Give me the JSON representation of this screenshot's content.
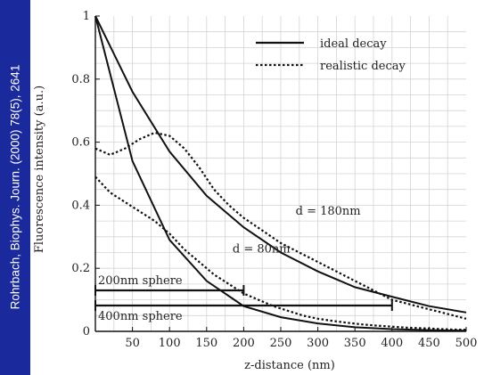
{
  "side_caption": "Rohrbach, Biophys. Journ. (2000) 78(5), 2641",
  "chart_data": {
    "type": "line",
    "xlabel": "z-distance (nm)",
    "ylabel": "Fluorescence intensity (a.u.)",
    "xlim": [
      0,
      500
    ],
    "ylim": [
      0,
      1
    ],
    "x_ticks": [
      "50",
      "100",
      "150",
      "200",
      "250",
      "300",
      "350",
      "400",
      "450",
      "500"
    ],
    "y_ticks": [
      "0",
      "0.2",
      "0.4",
      "0.6",
      "0.8",
      "1"
    ],
    "grid": true,
    "legend_position": "top-right",
    "legend": [
      {
        "label": "ideal decay",
        "style": "solid"
      },
      {
        "label": "realistic decay",
        "style": "dotted"
      }
    ],
    "series": [
      {
        "style": "solid",
        "x": [
          0,
          50,
          100,
          150,
          200,
          250,
          300,
          350,
          400,
          450,
          500
        ],
        "y": [
          1.0,
          0.54,
          0.29,
          0.16,
          0.08,
          0.045,
          0.025,
          0.013,
          0.007,
          0.004,
          0.002
        ]
      },
      {
        "style": "solid",
        "x": [
          0,
          50,
          100,
          150,
          200,
          250,
          300,
          350,
          400,
          450,
          500
        ],
        "y": [
          1.0,
          0.76,
          0.57,
          0.43,
          0.33,
          0.25,
          0.19,
          0.14,
          0.11,
          0.08,
          0.06
        ]
      },
      {
        "style": "dotted",
        "x": [
          0,
          20,
          40,
          60,
          80,
          100,
          120,
          140,
          160,
          180,
          200,
          220,
          240,
          260,
          280,
          300,
          320,
          340,
          360,
          380,
          400,
          420,
          440,
          460,
          480,
          500
        ],
        "y": [
          0.49,
          0.44,
          0.41,
          0.38,
          0.35,
          0.31,
          0.26,
          0.22,
          0.18,
          0.15,
          0.12,
          0.1,
          0.08,
          0.065,
          0.05,
          0.04,
          0.033,
          0.027,
          0.022,
          0.018,
          0.015,
          0.012,
          0.01,
          0.008,
          0.006,
          0.005
        ]
      },
      {
        "style": "dotted",
        "x": [
          0,
          20,
          40,
          60,
          80,
          100,
          120,
          140,
          160,
          180,
          200,
          225,
          250,
          275,
          300,
          325,
          350,
          375,
          400,
          425,
          450,
          475,
          500
        ],
        "y": [
          0.58,
          0.56,
          0.58,
          0.61,
          0.63,
          0.62,
          0.58,
          0.52,
          0.45,
          0.4,
          0.36,
          0.32,
          0.28,
          0.25,
          0.22,
          0.19,
          0.16,
          0.13,
          0.1,
          0.085,
          0.07,
          0.055,
          0.04
        ]
      }
    ],
    "annotations": [
      {
        "text": "d = 180nm",
        "x": 270,
        "y": 0.37
      },
      {
        "text": "d = 80nm",
        "x": 185,
        "y": 0.25
      }
    ],
    "bars": [
      {
        "label": "200nm sphere",
        "x0": 0,
        "x1": 200,
        "y": 0.13
      },
      {
        "label": "400nm sphere",
        "x0": 0,
        "x1": 400,
        "y": 0.082
      }
    ]
  }
}
